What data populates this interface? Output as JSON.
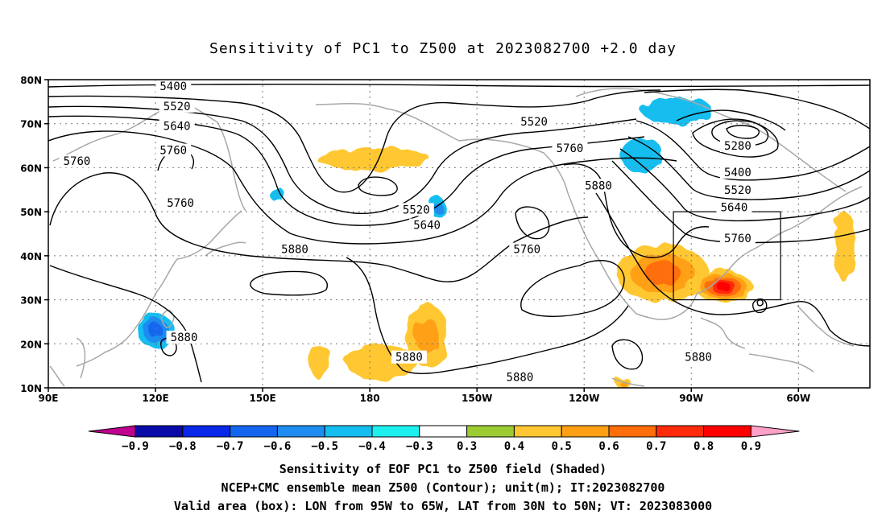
{
  "title": "Sensitivity of PC1 to Z500 at 2023082700 +2.0 day",
  "captions": {
    "line1": "Sensitivity of EOF PC1 to Z500 field (Shaded)",
    "line2": "NCEP+CMC ensemble mean Z500 (Contour); unit(m); IT:2023082700",
    "line3": "Valid area (box): LON from 95W to 65W, LAT from 30N to 50N; VT: 2023083000"
  },
  "chart_data": {
    "type": "heatmap",
    "projection": "cylindrical equidistant",
    "lon_range": [
      90,
      320
    ],
    "lat_range": [
      10,
      80
    ],
    "grid": true,
    "x_ticks": [
      {
        "lon": 90,
        "label": "90E"
      },
      {
        "lon": 120,
        "label": "120E"
      },
      {
        "lon": 150,
        "label": "150E"
      },
      {
        "lon": 180,
        "label": "180"
      },
      {
        "lon": 210,
        "label": "150W"
      },
      {
        "lon": 240,
        "label": "120W"
      },
      {
        "lon": 270,
        "label": "90W"
      },
      {
        "lon": 300,
        "label": "60W"
      }
    ],
    "y_ticks": [
      {
        "lat": 80,
        "label": "80N"
      },
      {
        "lat": 70,
        "label": "70N"
      },
      {
        "lat": 60,
        "label": "60N"
      },
      {
        "lat": 50,
        "label": "50N"
      },
      {
        "lat": 40,
        "label": "40N"
      },
      {
        "lat": 30,
        "label": "30N"
      },
      {
        "lat": 20,
        "label": "20N"
      },
      {
        "lat": 10,
        "label": "10N"
      }
    ],
    "colorbar": {
      "levels": [
        "-0.9",
        "-0.8",
        "-0.7",
        "-0.6",
        "-0.5",
        "-0.4",
        "-0.3",
        "0.3",
        "0.4",
        "0.5",
        "0.6",
        "0.7",
        "0.8",
        "0.9"
      ],
      "colors": [
        "#c0008f",
        "#0a0aa8",
        "#0a28e8",
        "#1466f0",
        "#1e8cf0",
        "#14bef0",
        "#1ef0f0",
        "#ffffff",
        "#9bcd32",
        "#ffc832",
        "#ffa014",
        "#ff6e0a",
        "#ff2a0a",
        "#ff0000",
        "#ffa0c8"
      ]
    },
    "valid_box": {
      "lon": [
        265,
        295
      ],
      "lat": [
        30,
        50
      ]
    },
    "contour_labels": [
      {
        "text": "5400",
        "lon": 125,
        "lat": 78.5
      },
      {
        "text": "5520",
        "lon": 126,
        "lat": 74
      },
      {
        "text": "5640",
        "lon": 126,
        "lat": 69.5
      },
      {
        "text": "5760",
        "lon": 98,
        "lat": 61.5
      },
      {
        "text": "5760",
        "lon": 125,
        "lat": 64
      },
      {
        "text": "5760",
        "lon": 127,
        "lat": 52
      },
      {
        "text": "5880",
        "lon": 159,
        "lat": 41.5
      },
      {
        "text": "5880",
        "lon": 128,
        "lat": 21.5
      },
      {
        "text": "5520",
        "lon": 193,
        "lat": 50.5
      },
      {
        "text": "5640",
        "lon": 196,
        "lat": 47
      },
      {
        "text": "5760",
        "lon": 224,
        "lat": 41.5
      },
      {
        "text": "5520",
        "lon": 226,
        "lat": 70.5
      },
      {
        "text": "5760",
        "lon": 236,
        "lat": 64.5
      },
      {
        "text": "5880",
        "lon": 244,
        "lat": 56
      },
      {
        "text": "5280",
        "lon": 283,
        "lat": 65
      },
      {
        "text": "5400",
        "lon": 283,
        "lat": 59
      },
      {
        "text": "5520",
        "lon": 283,
        "lat": 55
      },
      {
        "text": "5640",
        "lon": 282,
        "lat": 51
      },
      {
        "text": "5760",
        "lon": 283,
        "lat": 44
      },
      {
        "text": "5880",
        "lon": 191,
        "lat": 17
      },
      {
        "text": "5880",
        "lon": 222,
        "lat": 12.5
      },
      {
        "text": "5880",
        "lon": 272,
        "lat": 17
      }
    ],
    "positive_regions": [
      {
        "lon": 262,
        "lat": 36,
        "rlon": 13,
        "rlat": 6.5,
        "value": 0.6
      },
      {
        "lon": 279,
        "lat": 33,
        "rlon": 8,
        "rlat": 3.5,
        "value": 0.8
      },
      {
        "lon": 196,
        "lat": 22,
        "rlon": 6,
        "rlat": 7,
        "value": 0.5
      },
      {
        "lon": 183,
        "lat": 16,
        "rlon": 10,
        "rlat": 4,
        "value": 0.4
      },
      {
        "lon": 181,
        "lat": 62,
        "rlon": 16,
        "rlat": 2.5,
        "value": 0.4
      },
      {
        "lon": 313,
        "lat": 42,
        "rlon": 3,
        "rlat": 8,
        "value": 0.4
      },
      {
        "lon": 166,
        "lat": 16,
        "rlon": 3,
        "rlat": 4,
        "value": 0.4
      },
      {
        "lon": 251,
        "lat": 11,
        "rlon": 2,
        "rlat": 1.5,
        "value": 0.5
      }
    ],
    "negative_regions": [
      {
        "lon": 120,
        "lat": 23,
        "rlon": 5,
        "rlat": 4,
        "value": -0.6
      },
      {
        "lon": 256,
        "lat": 63,
        "rlon": 6,
        "rlat": 4,
        "value": -0.4
      },
      {
        "lon": 266,
        "lat": 73,
        "rlon": 10,
        "rlat": 3,
        "value": -0.4
      },
      {
        "lon": 199,
        "lat": 51,
        "rlon": 2,
        "rlat": 2.5,
        "value": -0.5
      },
      {
        "lon": 154,
        "lat": 54,
        "rlon": 1.5,
        "rlat": 2,
        "value": -0.4
      }
    ]
  }
}
